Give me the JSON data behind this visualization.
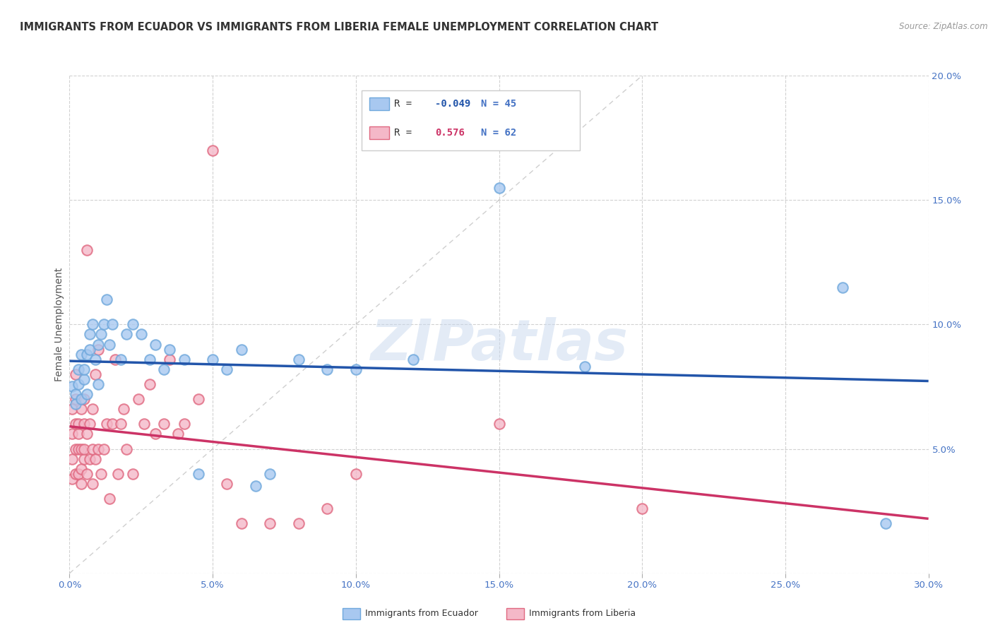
{
  "title": "IMMIGRANTS FROM ECUADOR VS IMMIGRANTS FROM LIBERIA FEMALE UNEMPLOYMENT CORRELATION CHART",
  "source": "Source: ZipAtlas.com",
  "ylabel": "Female Unemployment",
  "xlim": [
    0.0,
    0.3
  ],
  "ylim": [
    0.0,
    0.2
  ],
  "xticks": [
    0.0,
    0.05,
    0.1,
    0.15,
    0.2,
    0.25,
    0.3
  ],
  "yticks": [
    0.0,
    0.05,
    0.1,
    0.15,
    0.2
  ],
  "xtick_labels": [
    "0.0%",
    "5.0%",
    "10.0%",
    "15.0%",
    "20.0%",
    "25.0%",
    "30.0%"
  ],
  "ytick_labels": [
    "",
    "5.0%",
    "10.0%",
    "15.0%",
    "20.0%"
  ],
  "ecuador_edge_color": "#6fa8dc",
  "liberia_edge_color": "#e06880",
  "ecuador_face_color": "#a8c8f0",
  "liberia_face_color": "#f4b8c8",
  "ecuador_line_color": "#2255aa",
  "liberia_line_color": "#cc3366",
  "ecuador_R": -0.049,
  "ecuador_N": 45,
  "liberia_R": 0.576,
  "liberia_N": 62,
  "background_color": "#ffffff",
  "grid_color": "#cccccc",
  "title_color": "#333333",
  "tick_color": "#4472c4",
  "watermark": "ZIPatlas",
  "ecuador_scatter": [
    [
      0.001,
      0.075
    ],
    [
      0.002,
      0.072
    ],
    [
      0.002,
      0.068
    ],
    [
      0.003,
      0.082
    ],
    [
      0.003,
      0.076
    ],
    [
      0.004,
      0.07
    ],
    [
      0.004,
      0.088
    ],
    [
      0.005,
      0.078
    ],
    [
      0.005,
      0.082
    ],
    [
      0.006,
      0.088
    ],
    [
      0.006,
      0.072
    ],
    [
      0.007,
      0.096
    ],
    [
      0.007,
      0.09
    ],
    [
      0.008,
      0.1
    ],
    [
      0.009,
      0.086
    ],
    [
      0.01,
      0.092
    ],
    [
      0.01,
      0.076
    ],
    [
      0.011,
      0.096
    ],
    [
      0.012,
      0.1
    ],
    [
      0.013,
      0.11
    ],
    [
      0.014,
      0.092
    ],
    [
      0.015,
      0.1
    ],
    [
      0.018,
      0.086
    ],
    [
      0.02,
      0.096
    ],
    [
      0.022,
      0.1
    ],
    [
      0.025,
      0.096
    ],
    [
      0.028,
      0.086
    ],
    [
      0.03,
      0.092
    ],
    [
      0.033,
      0.082
    ],
    [
      0.035,
      0.09
    ],
    [
      0.04,
      0.086
    ],
    [
      0.045,
      0.04
    ],
    [
      0.05,
      0.086
    ],
    [
      0.055,
      0.082
    ],
    [
      0.06,
      0.09
    ],
    [
      0.065,
      0.035
    ],
    [
      0.07,
      0.04
    ],
    [
      0.08,
      0.086
    ],
    [
      0.09,
      0.082
    ],
    [
      0.1,
      0.082
    ],
    [
      0.12,
      0.086
    ],
    [
      0.15,
      0.155
    ],
    [
      0.18,
      0.083
    ],
    [
      0.27,
      0.115
    ],
    [
      0.285,
      0.02
    ]
  ],
  "liberia_scatter": [
    [
      0.001,
      0.038
    ],
    [
      0.001,
      0.046
    ],
    [
      0.001,
      0.056
    ],
    [
      0.001,
      0.066
    ],
    [
      0.002,
      0.04
    ],
    [
      0.002,
      0.05
    ],
    [
      0.002,
      0.06
    ],
    [
      0.002,
      0.07
    ],
    [
      0.002,
      0.08
    ],
    [
      0.003,
      0.04
    ],
    [
      0.003,
      0.05
    ],
    [
      0.003,
      0.056
    ],
    [
      0.003,
      0.06
    ],
    [
      0.004,
      0.042
    ],
    [
      0.004,
      0.05
    ],
    [
      0.004,
      0.066
    ],
    [
      0.004,
      0.036
    ],
    [
      0.005,
      0.046
    ],
    [
      0.005,
      0.05
    ],
    [
      0.005,
      0.06
    ],
    [
      0.005,
      0.07
    ],
    [
      0.006,
      0.04
    ],
    [
      0.006,
      0.056
    ],
    [
      0.006,
      0.13
    ],
    [
      0.007,
      0.046
    ],
    [
      0.007,
      0.06
    ],
    [
      0.008,
      0.036
    ],
    [
      0.008,
      0.05
    ],
    [
      0.008,
      0.066
    ],
    [
      0.009,
      0.046
    ],
    [
      0.009,
      0.08
    ],
    [
      0.01,
      0.05
    ],
    [
      0.01,
      0.09
    ],
    [
      0.011,
      0.04
    ],
    [
      0.012,
      0.05
    ],
    [
      0.013,
      0.06
    ],
    [
      0.014,
      0.03
    ],
    [
      0.015,
      0.06
    ],
    [
      0.016,
      0.086
    ],
    [
      0.017,
      0.04
    ],
    [
      0.018,
      0.06
    ],
    [
      0.019,
      0.066
    ],
    [
      0.02,
      0.05
    ],
    [
      0.022,
      0.04
    ],
    [
      0.024,
      0.07
    ],
    [
      0.026,
      0.06
    ],
    [
      0.028,
      0.076
    ],
    [
      0.03,
      0.056
    ],
    [
      0.033,
      0.06
    ],
    [
      0.035,
      0.086
    ],
    [
      0.038,
      0.056
    ],
    [
      0.04,
      0.06
    ],
    [
      0.045,
      0.07
    ],
    [
      0.05,
      0.17
    ],
    [
      0.055,
      0.036
    ],
    [
      0.06,
      0.02
    ],
    [
      0.07,
      0.02
    ],
    [
      0.08,
      0.02
    ],
    [
      0.09,
      0.026
    ],
    [
      0.1,
      0.04
    ],
    [
      0.15,
      0.06
    ],
    [
      0.2,
      0.026
    ]
  ]
}
